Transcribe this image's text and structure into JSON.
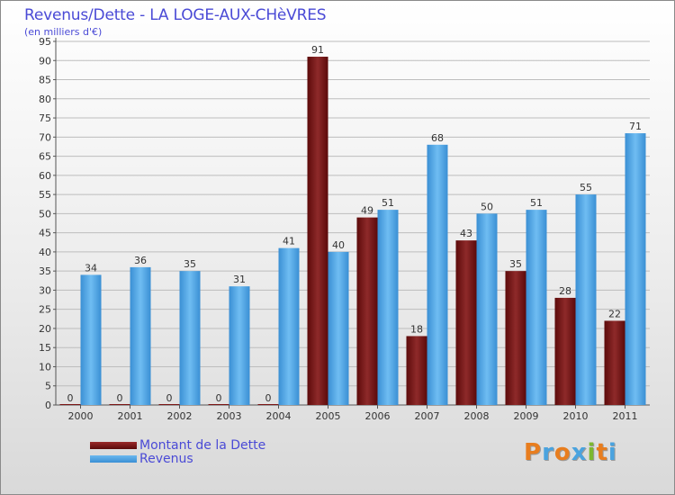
{
  "chart_data": {
    "type": "bar",
    "title": "Revenus/Dette - LA LOGE-AUX-CHèVRES",
    "subtitle": "(en milliers d'€)",
    "categories": [
      "2000",
      "2001",
      "2002",
      "2003",
      "2004",
      "2005",
      "2006",
      "2007",
      "2008",
      "2009",
      "2010",
      "2011"
    ],
    "series": [
      {
        "name": "Montant de la Dette",
        "color": "#7a1414",
        "values": [
          0,
          0,
          0,
          0,
          0,
          91,
          49,
          18,
          43,
          35,
          28,
          22
        ]
      },
      {
        "name": "Revenus",
        "color": "#4da3e6",
        "values": [
          34,
          36,
          35,
          31,
          41,
          40,
          51,
          68,
          50,
          51,
          55,
          71
        ]
      }
    ],
    "ylim": [
      0,
      95
    ],
    "yticks": [
      0,
      5,
      10,
      15,
      20,
      25,
      30,
      35,
      40,
      45,
      50,
      55,
      60,
      65,
      70,
      75,
      80,
      85,
      90,
      95
    ],
    "grid": true,
    "legend_position": "bottom-left"
  },
  "legend": {
    "debt_label": "Montant de la Dette",
    "revenue_label": "Revenus"
  },
  "logo": {
    "letters": [
      "P",
      "r",
      "o",
      "x",
      "i",
      "t",
      "i"
    ],
    "colors": [
      "#e87d1e",
      "#4aa3df",
      "#e87d1e",
      "#4aa3df",
      "#7cb82f",
      "#e87d1e",
      "#4aa3df"
    ]
  }
}
